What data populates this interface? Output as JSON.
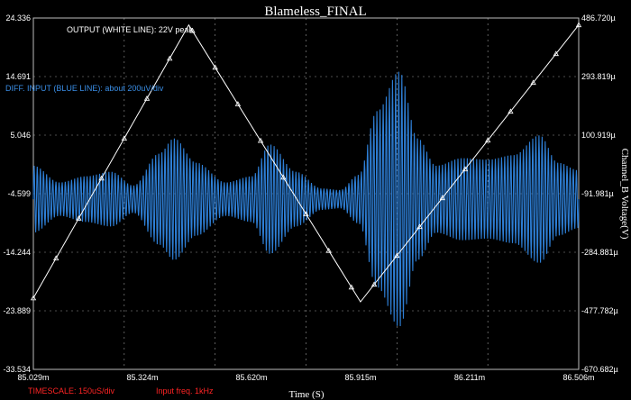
{
  "chart_data": {
    "type": "line",
    "title": "Blameless_FINAL",
    "xlabel": "Time (S)",
    "ylabel_right": "Channel_B Voltage(V)",
    "xlim": [
      85.029,
      86.506
    ],
    "x_unit": "m",
    "x_ticks": [
      "85.029m",
      "85.324m",
      "85.620m",
      "85.915m",
      "86.211m",
      "86.506m"
    ],
    "y_left_ticks": [
      "24.336",
      "14.691",
      "5.046",
      "-4.599",
      "-14.244",
      "-23.889",
      "-33.534"
    ],
    "y_right_ticks": [
      "486.720µ",
      "293.819µ",
      "100.919µ",
      "-91.981µ",
      "-284.881µ",
      "-477.782µ",
      "-670.682µ"
    ],
    "ylim_left": [
      -33.534,
      24.336
    ],
    "ylim_right_uV": [
      -670.682,
      486.72
    ],
    "grid": true,
    "colors": {
      "background": "#000000",
      "output": "#ffffff",
      "diff_input": "#2e7fd6",
      "timescale": "#ff2020",
      "grid": "#9a9a9a"
    },
    "series": [
      {
        "name": "OUTPUT (WHITE LINE)",
        "axis": "left",
        "x": [
          85.029,
          85.45,
          85.915,
          86.506
        ],
        "y": [
          -21.8,
          23.2,
          -22.4,
          23.2
        ]
      },
      {
        "name": "DIFF. INPUT (BLUE LINE)",
        "axis": "right",
        "x": [
          85.029,
          85.1,
          85.17,
          85.24,
          85.3,
          85.37,
          85.41,
          85.47,
          85.55,
          85.62,
          85.67,
          85.74,
          85.81,
          85.86,
          85.91,
          85.96,
          86.02,
          86.07,
          86.12,
          86.19,
          86.26,
          86.33,
          86.4,
          86.45,
          86.506
        ],
        "y_envelope": [
          110,
          55,
          75,
          90,
          45,
          150,
          200,
          120,
          55,
          75,
          180,
          90,
          35,
          30,
          80,
          290,
          420,
          200,
          110,
          135,
          130,
          145,
          210,
          120,
          95
        ]
      }
    ],
    "annotations": {
      "output": "OUTPUT (WHITE LINE): 22V peak",
      "diff": "DIFF. INPUT (BLUE LINE): about 200uV/div",
      "timescale": "TIMESCALE: 150uS/div",
      "input_freq": "Input freq. 1kHz"
    }
  }
}
